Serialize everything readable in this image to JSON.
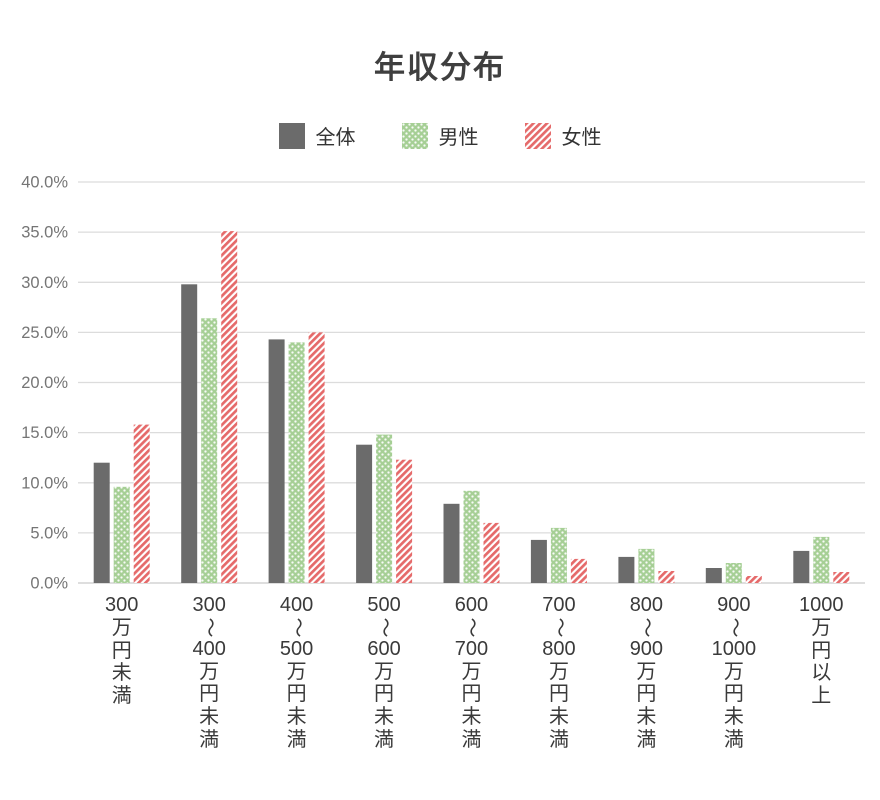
{
  "chart_data": {
    "type": "bar",
    "title": "年収分布",
    "categories": [
      "300万円未満",
      "300〜400万円未満",
      "400〜500万円未満",
      "500〜600万円未満",
      "600〜700万円未満",
      "700〜800万円未満",
      "800〜900万円未満",
      "900〜1000万円未満",
      "1000万円以上"
    ],
    "series": [
      {
        "key": "overall",
        "name": "全体",
        "pattern": "solid",
        "color": "#6b6b6b",
        "values": [
          12.0,
          29.8,
          24.3,
          13.8,
          7.9,
          4.3,
          2.6,
          1.5,
          3.2
        ]
      },
      {
        "key": "male",
        "name": "男性",
        "pattern": "dots",
        "color": "#a6cf95",
        "values": [
          9.6,
          26.4,
          24.0,
          14.8,
          9.2,
          5.5,
          3.4,
          2.0,
          4.6
        ]
      },
      {
        "key": "female",
        "name": "女性",
        "pattern": "stripes",
        "color": "#e56a6a",
        "values": [
          15.8,
          35.1,
          25.0,
          12.3,
          6.0,
          2.4,
          1.2,
          0.7,
          1.1
        ]
      }
    ],
    "y_axis": {
      "min": 0,
      "max": 40,
      "ticks": [
        {
          "value": 0,
          "label": "0.0%"
        },
        {
          "value": 5,
          "label": "5.0%"
        },
        {
          "value": 10,
          "label": "10.0%"
        },
        {
          "value": 15,
          "label": "15.0%"
        },
        {
          "value": 20,
          "label": "20.0%"
        },
        {
          "value": 25,
          "label": "25.0%"
        },
        {
          "value": 30,
          "label": "30.0%"
        },
        {
          "value": 35,
          "label": "35.0%"
        },
        {
          "value": 40,
          "label": "40.0%"
        }
      ]
    },
    "legend_position": "top",
    "grid": true
  },
  "colors": {
    "grid": "#dcdcdc",
    "baseline": "#c9c9c9",
    "axis_text": "#757575",
    "title_text": "#3f3f3f",
    "xlabel_text": "#3a3a3a"
  }
}
